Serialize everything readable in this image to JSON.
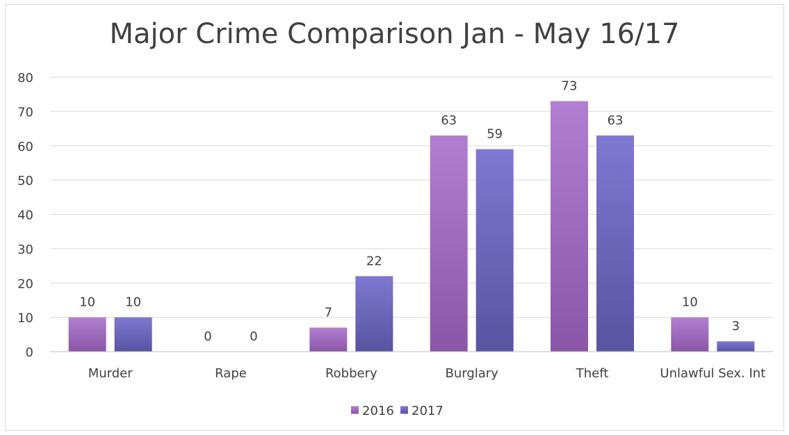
{
  "chart_data": {
    "type": "bar",
    "title": "Major Crime Comparison Jan - May 16/17",
    "xlabel": "",
    "ylabel": "",
    "categories": [
      "Murder",
      "Rape",
      "Robbery",
      "Burglary",
      "Theft",
      "Unlawful Sex. Int"
    ],
    "series": [
      {
        "name": "2016",
        "values": [
          10,
          0,
          7,
          63,
          73,
          10
        ],
        "color_top": "#b07fd0",
        "color_bottom": "#8a56a8"
      },
      {
        "name": "2017",
        "values": [
          10,
          0,
          22,
          59,
          63,
          3
        ],
        "color_top": "#7f78d2",
        "color_bottom": "#5854a0"
      }
    ],
    "ylim": [
      0,
      80
    ],
    "yticks": [
      0,
      10,
      20,
      30,
      40,
      50,
      60,
      70,
      80
    ],
    "grid": true,
    "data_labels": true,
    "legend": {
      "position": "bottom"
    }
  }
}
